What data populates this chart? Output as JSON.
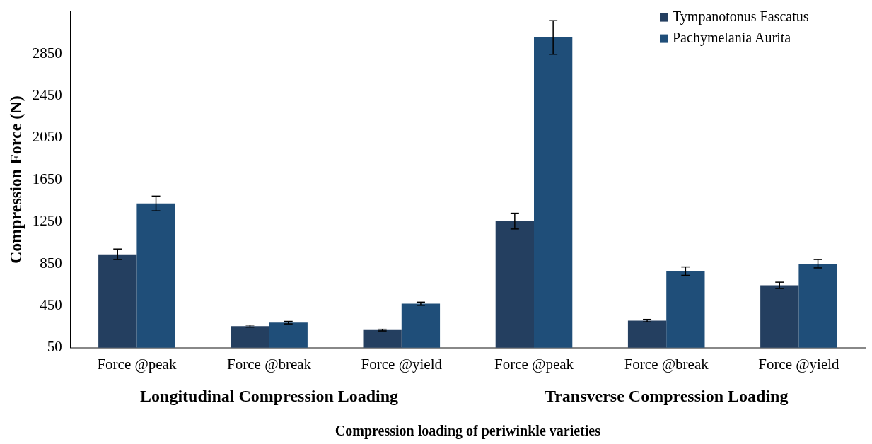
{
  "chart_data": {
    "type": "bar",
    "xlabel": "Compression loading of periwinkle varieties",
    "ylabel": "Compression Force (N)",
    "categories": [
      "Force @peak",
      "Force @break",
      "Force @yield",
      "Force @peak",
      "Force @break",
      "Force @yield"
    ],
    "series": [
      {
        "name": "Tympanotonus Fascatus",
        "color": "#243f60",
        "values": [
          940,
          256,
          218,
          1256,
          308,
          644
        ],
        "errors": [
          50,
          10,
          8,
          75,
          12,
          30
        ]
      },
      {
        "name": "Pachymelania Aurita",
        "color": "#1f4e79",
        "values": [
          1424,
          289,
          469,
          3005,
          779,
          850
        ],
        "errors": [
          70,
          12,
          15,
          160,
          40,
          40
        ]
      }
    ],
    "annotations": [
      "Longitudinal Compression Loading",
      "Transverse Compression Loading"
    ],
    "ylim": [
      50,
      3250
    ],
    "yticks": [
      50,
      450,
      850,
      1250,
      1650,
      2050,
      2450,
      2850
    ],
    "grid": false,
    "legend": "top right"
  }
}
